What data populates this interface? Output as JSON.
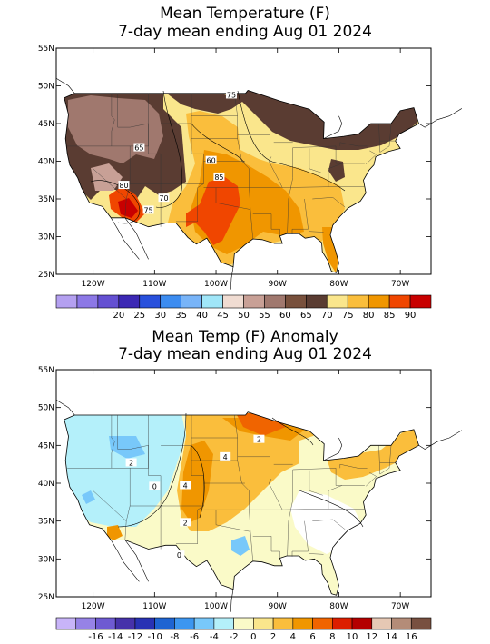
{
  "panels": [
    {
      "title_line1": "Mean Temperature (F)",
      "title_line2": "7-day mean ending Aug 01 2024",
      "lat_labels": [
        "55N",
        "50N",
        "45N",
        "40N",
        "35N",
        "30N",
        "25N"
      ],
      "lon_labels": [
        "120W",
        "110W",
        "100W",
        "90W",
        "80W",
        "70W"
      ],
      "contour_labels": [
        "75",
        "65",
        "60",
        "85",
        "80",
        "70",
        "75"
      ],
      "colorbar": {
        "colors": [
          "#b4a0f0",
          "#8c78e6",
          "#6450d2",
          "#3c28b4",
          "#2850dc",
          "#3c8cf0",
          "#78b4f8",
          "#a0e6f8",
          "#f0dcd2",
          "#c8a096",
          "#a0786e",
          "#78503c",
          "#5a3c32",
          "#fae68c",
          "#fabe3c",
          "#f09600",
          "#f04600",
          "#c80000"
        ],
        "labels": [
          "20",
          "25",
          "30",
          "35",
          "40",
          "45",
          "50",
          "55",
          "60",
          "65",
          "70",
          "75",
          "80",
          "85",
          "90"
        ]
      }
    },
    {
      "title_line1": "Mean Temp (F) Anomaly",
      "title_line2": "7-day mean ending Aug 01 2024",
      "lat_labels": [
        "55N",
        "50N",
        "45N",
        "40N",
        "35N",
        "30N",
        "25N"
      ],
      "lon_labels": [
        "120W",
        "110W",
        "100W",
        "90W",
        "80W",
        "70W"
      ],
      "contour_labels": [
        "2",
        "4",
        "2",
        "0",
        "4",
        "2",
        "0"
      ],
      "colorbar": {
        "colors": [
          "#c8b4f8",
          "#9682e6",
          "#6e5ad2",
          "#4632aa",
          "#2832b4",
          "#1e64d2",
          "#3c96f0",
          "#78c8fa",
          "#b4f0fa",
          "#fafac8",
          "#fae68c",
          "#fabe3c",
          "#f09600",
          "#f06400",
          "#dc1e00",
          "#b40000",
          "#e6c8b4",
          "#b48c78",
          "#785040"
        ],
        "labels": [
          "-16",
          "-14",
          "-12",
          "-10",
          "-8",
          "-6",
          "-4",
          "-2",
          "0",
          "2",
          "4",
          "6",
          "8",
          "10",
          "12",
          "14",
          "16"
        ]
      }
    }
  ]
}
